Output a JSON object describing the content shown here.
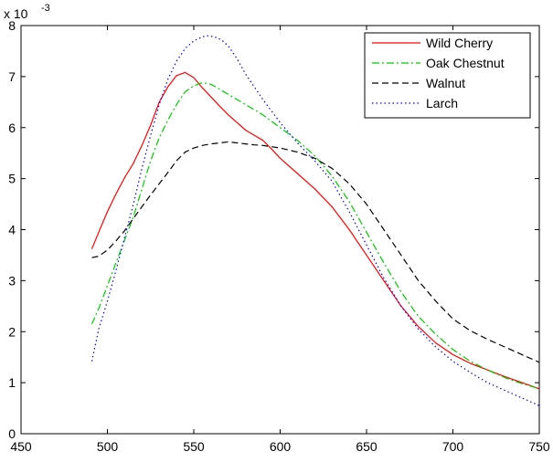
{
  "chart_data": {
    "type": "line",
    "title": "",
    "xlabel": "",
    "ylabel": "",
    "xlim": [
      450,
      750
    ],
    "ylim": [
      0,
      8
    ],
    "y_exponent_label": "x 10",
    "y_exponent_power": "-3",
    "xticks": [
      450,
      500,
      550,
      600,
      650,
      700,
      750
    ],
    "yticks": [
      0,
      1,
      2,
      3,
      4,
      5,
      6,
      7,
      8
    ],
    "xtick_labels": [
      "450",
      "500",
      "550",
      "600",
      "650",
      "700",
      "750"
    ],
    "ytick_labels": [
      "0",
      "1",
      "2",
      "3",
      "4",
      "5",
      "6",
      "7",
      "8"
    ],
    "grid": false,
    "legend_position": "top-right",
    "series": [
      {
        "name": "Wild Cherry",
        "color": "#ff0000",
        "style": "solid",
        "x": [
          491,
          495,
          500,
          505,
          510,
          515,
          520,
          525,
          530,
          535,
          540,
          545,
          550,
          555,
          560,
          565,
          570,
          575,
          580,
          585,
          590,
          595,
          600,
          610,
          620,
          630,
          640,
          650,
          660,
          670,
          680,
          690,
          700,
          710,
          720,
          730,
          740,
          750
        ],
        "values": [
          3.62,
          3.95,
          4.35,
          4.7,
          5.02,
          5.3,
          5.65,
          6.05,
          6.5,
          6.8,
          7.02,
          7.08,
          6.98,
          6.78,
          6.6,
          6.42,
          6.25,
          6.1,
          5.95,
          5.85,
          5.75,
          5.58,
          5.4,
          5.1,
          4.8,
          4.45,
          4.0,
          3.5,
          3.0,
          2.5,
          2.1,
          1.78,
          1.55,
          1.38,
          1.25,
          1.12,
          1.0,
          0.88
        ]
      },
      {
        "name": "Oak Chestnut",
        "color": "#00cc00",
        "style": "dashdot",
        "x": [
          491,
          495,
          500,
          505,
          510,
          515,
          520,
          525,
          530,
          535,
          540,
          545,
          550,
          555,
          560,
          565,
          570,
          575,
          580,
          590,
          600,
          610,
          620,
          630,
          640,
          650,
          660,
          670,
          680,
          690,
          700,
          710,
          720,
          730,
          740,
          750
        ],
        "values": [
          2.15,
          2.45,
          2.9,
          3.35,
          3.8,
          4.25,
          4.8,
          5.35,
          5.8,
          6.15,
          6.45,
          6.7,
          6.82,
          6.88,
          6.85,
          6.75,
          6.65,
          6.55,
          6.45,
          6.25,
          6.0,
          5.75,
          5.45,
          5.05,
          4.55,
          3.95,
          3.35,
          2.78,
          2.3,
          1.95,
          1.65,
          1.42,
          1.25,
          1.1,
          0.98,
          0.88
        ]
      },
      {
        "name": "Walnut",
        "color": "#000000",
        "style": "dashed",
        "x": [
          491,
          495,
          500,
          505,
          510,
          515,
          520,
          525,
          530,
          535,
          540,
          545,
          550,
          555,
          560,
          565,
          570,
          575,
          580,
          585,
          590,
          600,
          610,
          620,
          630,
          640,
          650,
          660,
          670,
          680,
          690,
          700,
          710,
          720,
          730,
          740,
          750
        ],
        "values": [
          3.45,
          3.48,
          3.6,
          3.78,
          3.98,
          4.22,
          4.45,
          4.68,
          4.9,
          5.12,
          5.35,
          5.52,
          5.6,
          5.65,
          5.68,
          5.7,
          5.72,
          5.7,
          5.68,
          5.66,
          5.65,
          5.6,
          5.52,
          5.4,
          5.2,
          4.9,
          4.5,
          4.0,
          3.5,
          3.0,
          2.6,
          2.25,
          2.02,
          1.85,
          1.7,
          1.55,
          1.4
        ]
      },
      {
        "name": "Larch",
        "color": "#0000ff",
        "style": "dotted",
        "x": [
          491,
          495,
          500,
          505,
          510,
          515,
          520,
          525,
          530,
          535,
          540,
          545,
          550,
          555,
          558,
          562,
          566,
          570,
          575,
          580,
          590,
          600,
          610,
          620,
          630,
          640,
          650,
          660,
          670,
          680,
          690,
          700,
          710,
          720,
          730,
          740,
          750
        ],
        "values": [
          1.42,
          2.05,
          2.6,
          3.2,
          3.85,
          4.5,
          5.2,
          5.85,
          6.45,
          6.95,
          7.3,
          7.55,
          7.7,
          7.78,
          7.8,
          7.78,
          7.72,
          7.6,
          7.35,
          7.05,
          6.55,
          6.1,
          5.7,
          5.35,
          4.95,
          4.35,
          3.7,
          3.05,
          2.5,
          2.05,
          1.7,
          1.42,
          1.2,
          1.0,
          0.85,
          0.7,
          0.55
        ]
      }
    ]
  }
}
